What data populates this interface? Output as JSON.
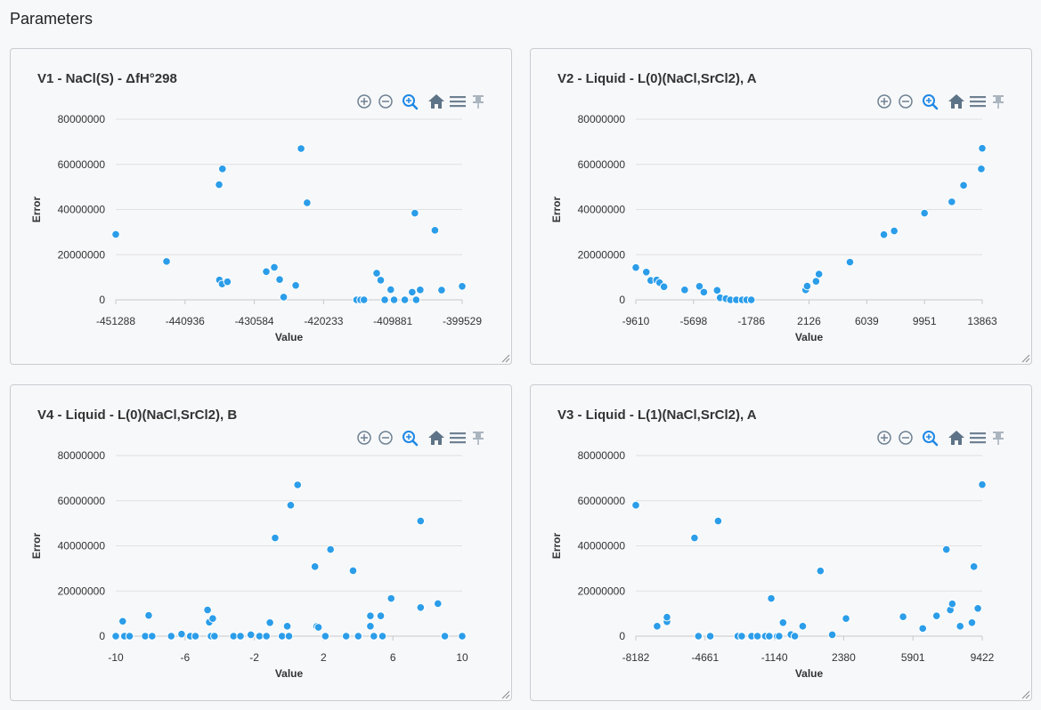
{
  "page": {
    "title": "Parameters"
  },
  "chart_data": [
    {
      "type": "scatter",
      "title": "V1 - NaCl(S) - ΔfH°298",
      "xlabel": "Value",
      "ylabel": "Error",
      "xlim": [
        -451288,
        -399529
      ],
      "ylim": [
        0,
        80000000
      ],
      "xticks": [
        "-451288",
        "-440936",
        "-430584",
        "-420233",
        "-409881",
        "-399529"
      ],
      "yticks": [
        "0",
        "20000000",
        "40000000",
        "60000000",
        "80000000"
      ],
      "grid": true,
      "points": [
        [
          -451288,
          29000000
        ],
        [
          -443700,
          17000000
        ],
        [
          -435850,
          51000000
        ],
        [
          -435350,
          58000000
        ],
        [
          -435800,
          8800000
        ],
        [
          -435400,
          7000000
        ],
        [
          -434600,
          8000000
        ],
        [
          -428800,
          12500000
        ],
        [
          -427600,
          14400000
        ],
        [
          -426800,
          9000000
        ],
        [
          -426200,
          1200000
        ],
        [
          -424400,
          6400000
        ],
        [
          -423600,
          67000000
        ],
        [
          -422700,
          43000000
        ],
        [
          -415300,
          0
        ],
        [
          -414700,
          0
        ],
        [
          -414200,
          0
        ],
        [
          -412300,
          11800000
        ],
        [
          -411700,
          8700000
        ],
        [
          -411100,
          0
        ],
        [
          -410200,
          4500000
        ],
        [
          -409700,
          0
        ],
        [
          -408100,
          0
        ],
        [
          -407000,
          3400000
        ],
        [
          -406400,
          0
        ],
        [
          -406600,
          38400000
        ],
        [
          -405800,
          4400000
        ],
        [
          -403600,
          30800000
        ],
        [
          -402600,
          4300000
        ],
        [
          -399529,
          6000000
        ]
      ]
    },
    {
      "type": "scatter",
      "title": "V2 - Liquid - L(0)(NaCl,SrCl2), A",
      "xlabel": "Value",
      "ylabel": "Error",
      "xlim": [
        -9610,
        13863
      ],
      "ylim": [
        0,
        80000000
      ],
      "xticks": [
        "-9610",
        "-5698",
        "-1786",
        "2126",
        "6039",
        "9951",
        "13863"
      ],
      "yticks": [
        "0",
        "20000000",
        "40000000",
        "60000000",
        "80000000"
      ],
      "grid": true,
      "points": [
        [
          -9610,
          14300000
        ],
        [
          -8900,
          12300000
        ],
        [
          -8600,
          8600000
        ],
        [
          -8200,
          8800000
        ],
        [
          -8000,
          7600000
        ],
        [
          -7700,
          5800000
        ],
        [
          -6300,
          4400000
        ],
        [
          -5300,
          6000000
        ],
        [
          -5000,
          3400000
        ],
        [
          -4100,
          4200000
        ],
        [
          -3900,
          900000
        ],
        [
          -3500,
          500000
        ],
        [
          -3200,
          0
        ],
        [
          -2800,
          0
        ],
        [
          -2400,
          0
        ],
        [
          -2100,
          0
        ],
        [
          -1786,
          0
        ],
        [
          1900,
          4400000
        ],
        [
          2000,
          6100000
        ],
        [
          2600,
          8200000
        ],
        [
          2800,
          11400000
        ],
        [
          4900,
          16700000
        ],
        [
          7200,
          28900000
        ],
        [
          7900,
          30500000
        ],
        [
          9951,
          38400000
        ],
        [
          11800,
          43400000
        ],
        [
          12600,
          50700000
        ],
        [
          13800,
          58000000
        ],
        [
          13863,
          67100000
        ]
      ]
    },
    {
      "type": "scatter",
      "title": "V4 - Liquid - L(0)(NaCl,SrCl2), B",
      "xlabel": "Value",
      "ylabel": "Error",
      "xlim": [
        -10,
        10
      ],
      "ylim": [
        0,
        80000000
      ],
      "xticks": [
        "-10",
        "-6",
        "-2",
        "2",
        "6",
        "10"
      ],
      "yticks": [
        "0",
        "20000000",
        "40000000",
        "60000000",
        "80000000"
      ],
      "grid": true,
      "points": [
        [
          -10,
          0
        ],
        [
          -9.6,
          6600000
        ],
        [
          -9.5,
          0
        ],
        [
          -9.2,
          0
        ],
        [
          -8.3,
          0
        ],
        [
          -8.1,
          9200000
        ],
        [
          -7.9,
          0
        ],
        [
          -6.8,
          0
        ],
        [
          -6.2,
          900000
        ],
        [
          -5.7,
          0
        ],
        [
          -5.4,
          0
        ],
        [
          -4.7,
          11600000
        ],
        [
          -4.6,
          6200000
        ],
        [
          -4.4,
          7800000
        ],
        [
          -4.5,
          0
        ],
        [
          -4.3,
          0
        ],
        [
          -3.2,
          0
        ],
        [
          -2.8,
          0
        ],
        [
          -2.2,
          600000
        ],
        [
          -1.7,
          0
        ],
        [
          -1.3,
          0
        ],
        [
          -1.1,
          6000000
        ],
        [
          -0.8,
          43500000
        ],
        [
          -0.4,
          0
        ],
        [
          -0.1,
          4400000
        ],
        [
          0.0,
          0
        ],
        [
          0.1,
          58000000
        ],
        [
          0.5,
          67000000
        ],
        [
          1.5,
          30800000
        ],
        [
          1.6,
          4300000
        ],
        [
          1.7,
          3900000
        ],
        [
          2.1,
          0
        ],
        [
          2.4,
          38400000
        ],
        [
          3.3,
          0
        ],
        [
          3.7,
          29000000
        ],
        [
          4.0,
          0
        ],
        [
          4.7,
          9000000
        ],
        [
          4.7,
          4400000
        ],
        [
          4.9,
          0
        ],
        [
          5.3,
          9000000
        ],
        [
          5.4,
          0
        ],
        [
          5.9,
          16700000
        ],
        [
          7.6,
          51000000
        ],
        [
          7.6,
          12700000
        ],
        [
          8.6,
          14400000
        ],
        [
          9.0,
          0
        ],
        [
          10,
          0
        ]
      ]
    },
    {
      "type": "scatter",
      "title": "V3 - Liquid - L(1)(NaCl,SrCl2), A",
      "xlabel": "Value",
      "ylabel": "Error",
      "xlim": [
        -8182,
        9422
      ],
      "ylim": [
        0,
        80000000
      ],
      "xticks": [
        "-8182",
        "-4661",
        "-1140",
        "2380",
        "5901",
        "9422"
      ],
      "yticks": [
        "0",
        "20000000",
        "40000000",
        "60000000",
        "80000000"
      ],
      "grid": true,
      "points": [
        [
          -8182,
          58000000
        ],
        [
          -7100,
          4400000
        ],
        [
          -6600,
          6400000
        ],
        [
          -6600,
          8400000
        ],
        [
          -5200,
          43500000
        ],
        [
          -5000,
          0
        ],
        [
          -4400,
          0
        ],
        [
          -4000,
          51000000
        ],
        [
          -3000,
          0
        ],
        [
          -2800,
          0
        ],
        [
          -2300,
          0
        ],
        [
          -2000,
          0
        ],
        [
          -1600,
          0
        ],
        [
          -1400,
          0
        ],
        [
          -1300,
          16700000
        ],
        [
          -1000,
          0
        ],
        [
          -900,
          0
        ],
        [
          -700,
          6000000
        ],
        [
          -300,
          700000
        ],
        [
          -100,
          0
        ],
        [
          300,
          4400000
        ],
        [
          1200,
          28900000
        ],
        [
          1800,
          600000
        ],
        [
          2500,
          7800000
        ],
        [
          5400,
          8600000
        ],
        [
          6400,
          3400000
        ],
        [
          7100,
          9000000
        ],
        [
          7600,
          38400000
        ],
        [
          7800,
          11600000
        ],
        [
          7900,
          14300000
        ],
        [
          8300,
          4400000
        ],
        [
          8900,
          6000000
        ],
        [
          9000,
          30800000
        ],
        [
          9200,
          12300000
        ],
        [
          9422,
          67100000
        ]
      ]
    }
  ]
}
